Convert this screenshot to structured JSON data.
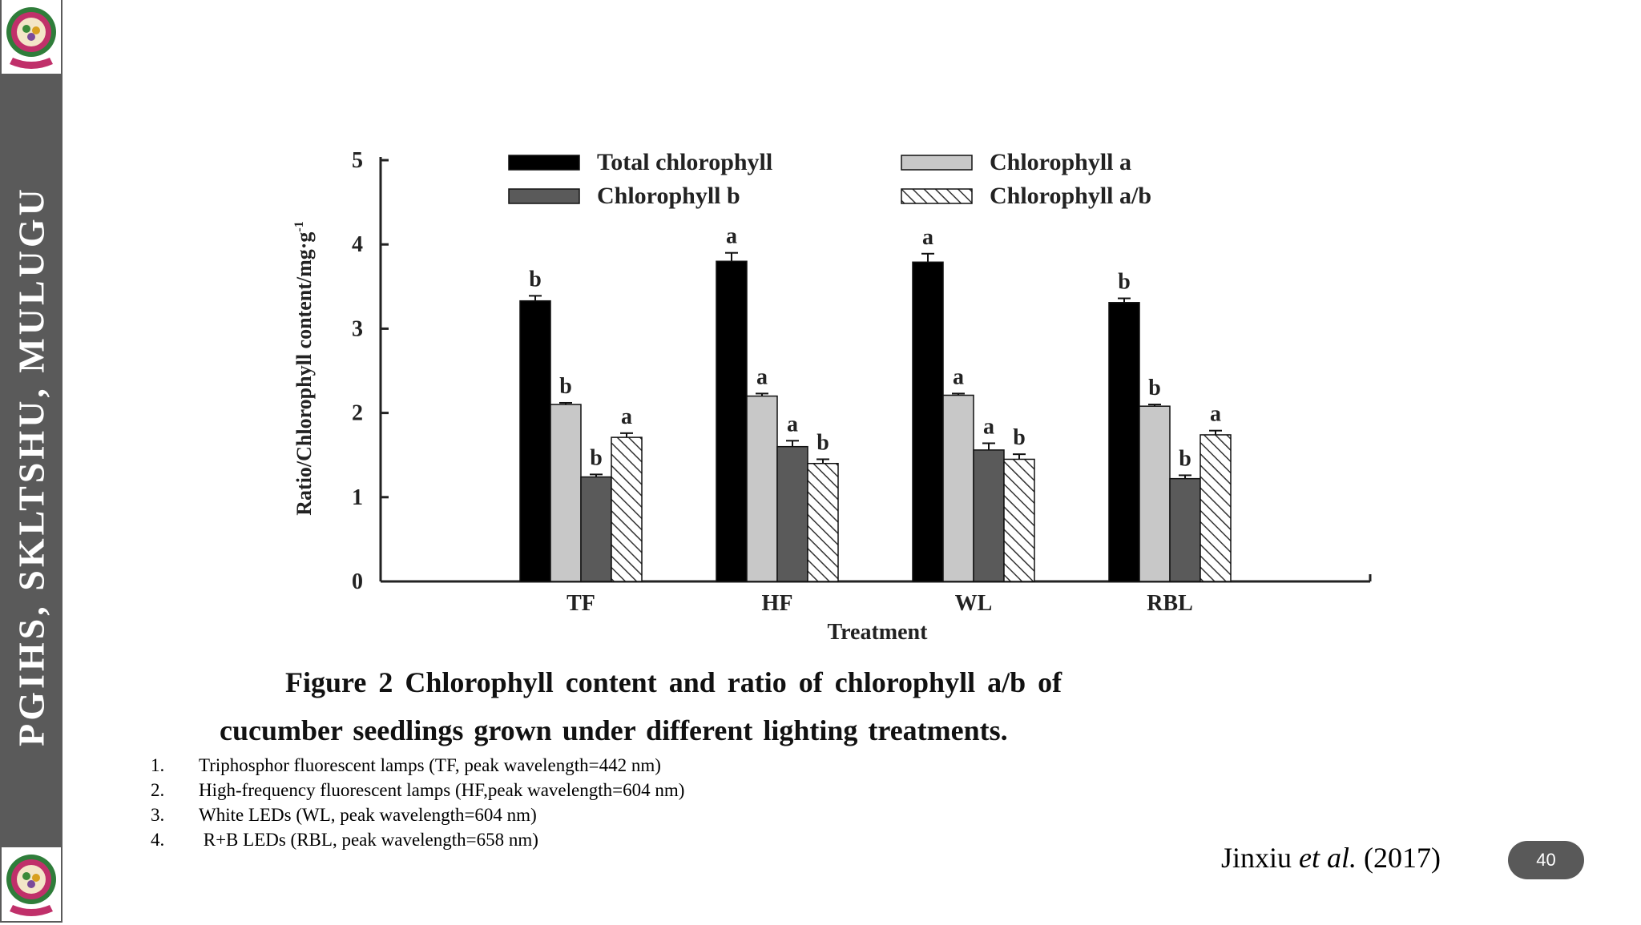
{
  "sidebar": {
    "text": "PGIHS, SKLTSHU, MULUGU"
  },
  "chart_data": {
    "type": "bar",
    "categories": [
      "TF",
      "HF",
      "WL",
      "RBL"
    ],
    "series": [
      {
        "name": "Total chlorophyll",
        "values": [
          3.33,
          3.8,
          3.79,
          3.31
        ],
        "errors": [
          0.06,
          0.1,
          0.1,
          0.05
        ],
        "letters": [
          "b",
          "a",
          "a",
          "b"
        ]
      },
      {
        "name": "Chlorophyll a",
        "values": [
          2.1,
          2.2,
          2.21,
          2.08
        ],
        "errors": [
          0.02,
          0.03,
          0.02,
          0.02
        ],
        "letters": [
          "b",
          "a",
          "a",
          "b"
        ]
      },
      {
        "name": "Chlorophyll b",
        "values": [
          1.24,
          1.6,
          1.56,
          1.22
        ],
        "errors": [
          0.03,
          0.07,
          0.08,
          0.04
        ],
        "letters": [
          "b",
          "a",
          "a",
          "b"
        ]
      },
      {
        "name": "Chlorophyll a/b",
        "values": [
          1.71,
          1.4,
          1.45,
          1.74
        ],
        "errors": [
          0.05,
          0.05,
          0.06,
          0.05
        ],
        "letters": [
          "a",
          "b",
          "b",
          "a"
        ]
      }
    ],
    "colors": [
      "#000000",
      "#c8c8c8",
      "#5a5a5a",
      "hatched"
    ],
    "xlabel": "Treatment",
    "ylabel": "Ratio/Chlorophyll content/mg·g",
    "ylabel_sup": "-1",
    "ylim": [
      0,
      5
    ],
    "yticks": [
      "0",
      "1",
      "2",
      "3",
      "4",
      "5"
    ],
    "grid": false,
    "legend_position": "top"
  },
  "caption": {
    "line1": "Figure 2    Chlorophyll content and ratio of chlorophyll a/b of",
    "line2": "cucumber seedlings grown under different lighting treatments."
  },
  "notes": [
    {
      "num": "1.",
      "text": "Triphosphor fluorescent lamps (TF, peak wavelength=442 nm)"
    },
    {
      "num": "2.",
      "text": "High-frequency fluorescent lamps (HF,peak wavelength=604 nm)"
    },
    {
      "num": "3.",
      "text": "White LEDs (WL, peak wavelength=604 nm)"
    },
    {
      "num": "4.",
      "text": " R+B LEDs (RBL, peak wavelength=658 nm)"
    }
  ],
  "citation": {
    "author": "Jinxiu",
    "etal": "et al.",
    "year": "(2017)"
  },
  "page_number": "40"
}
